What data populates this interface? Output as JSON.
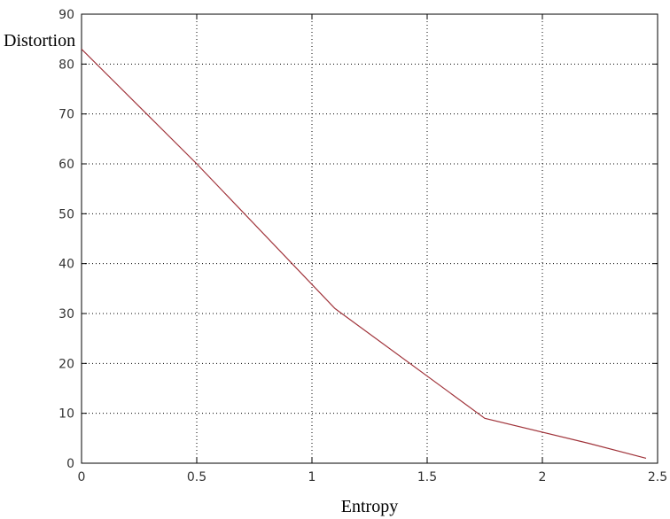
{
  "chart_data": {
    "type": "line",
    "title": "",
    "xlabel": "Entropy",
    "ylabel": "Distortion",
    "xlim": [
      0,
      2.5
    ],
    "ylim": [
      0,
      90
    ],
    "xticks": [
      "0",
      "0.5",
      "1",
      "1.5",
      "2",
      "2.5"
    ],
    "yticks": [
      "0",
      "10",
      "20",
      "30",
      "40",
      "50",
      "60",
      "70",
      "80",
      "90"
    ],
    "grid": true,
    "series": [
      {
        "color": "#a0333a",
        "x": [
          0.0,
          0.5,
          1.1,
          1.75,
          2.2,
          2.45
        ],
        "y": [
          83,
          60,
          31,
          9,
          4,
          1
        ]
      }
    ]
  }
}
